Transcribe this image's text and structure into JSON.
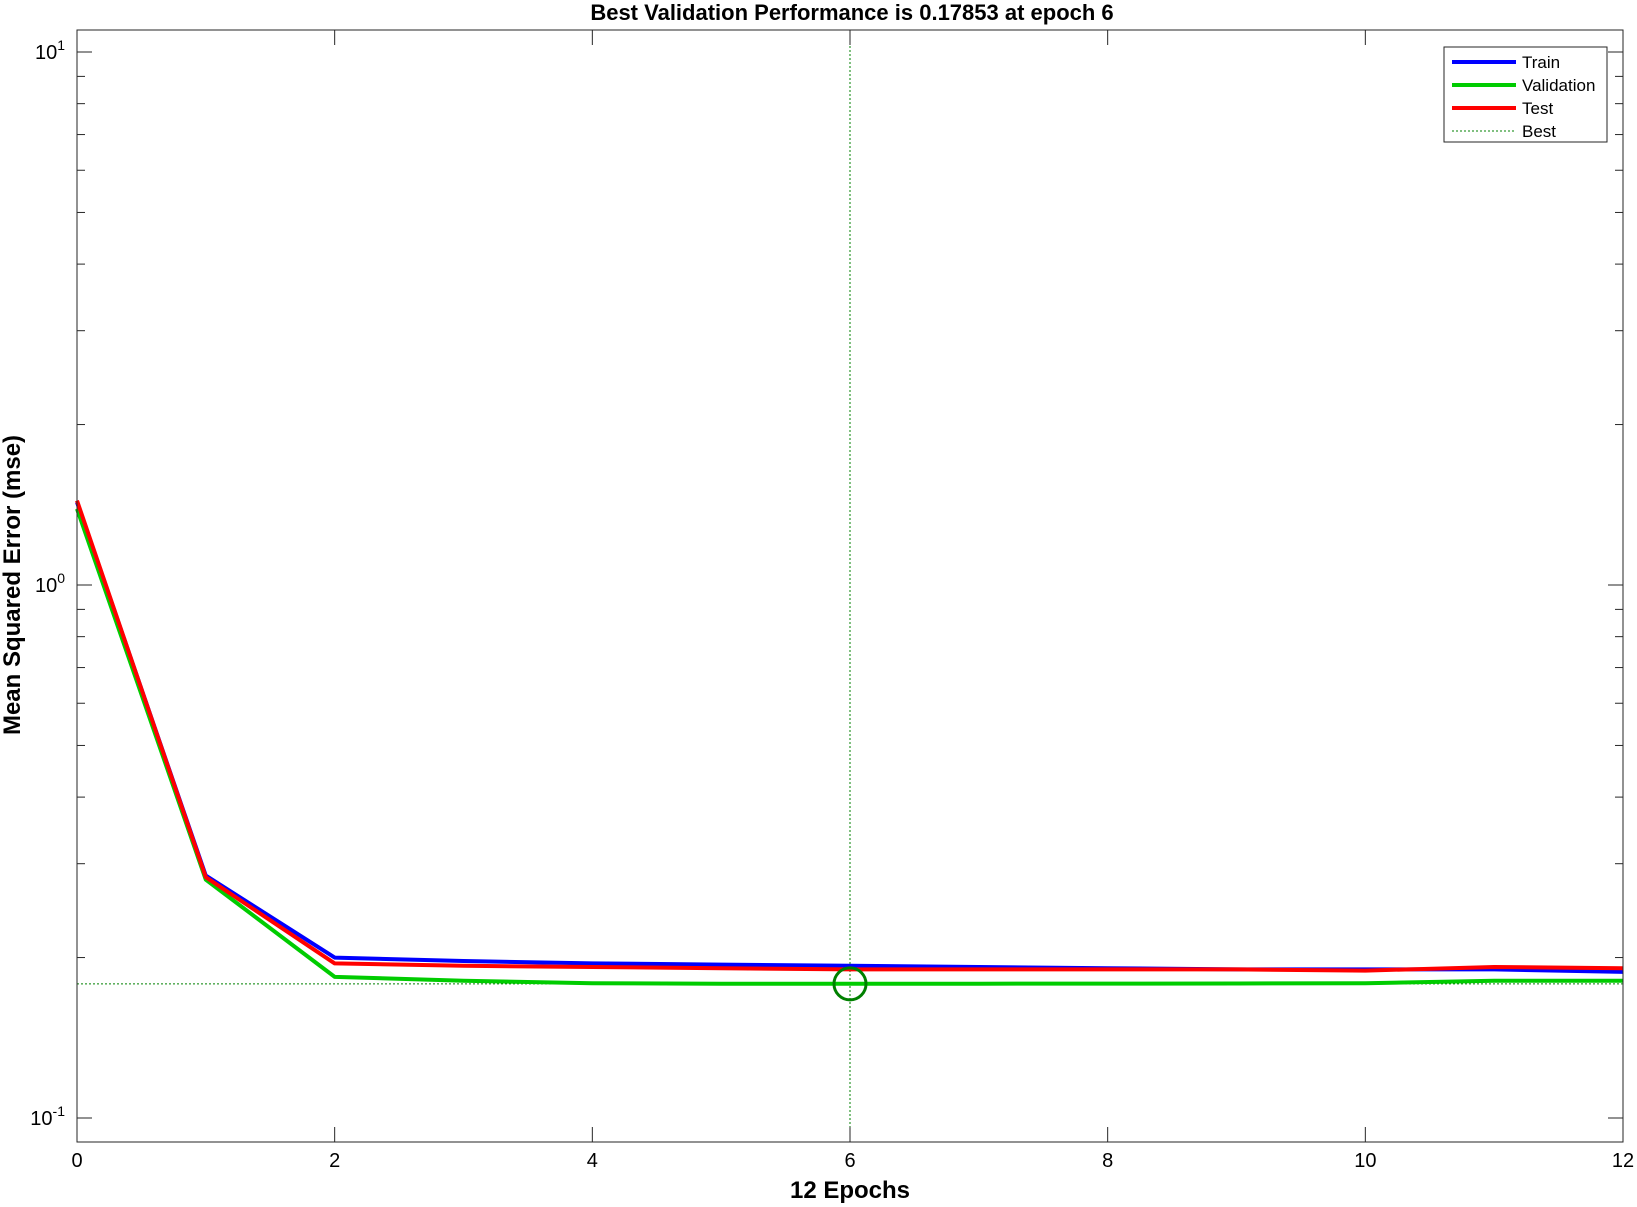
{
  "chart_data": {
    "type": "line",
    "title": "Best Validation Performance is 0.17853 at epoch 6",
    "xlabel": "12 Epochs",
    "ylabel": "Mean Squared Error  (mse)",
    "xlim": [
      0,
      12
    ],
    "ylim": [
      0.1,
      10
    ],
    "yscale": "log",
    "x_ticks": [
      0,
      2,
      4,
      6,
      8,
      10,
      12
    ],
    "y_ticks": [
      {
        "value": 10,
        "base": "10",
        "exp": "1"
      },
      {
        "value": 1,
        "base": "10",
        "exp": "0"
      },
      {
        "value": 0.1,
        "base": "10",
        "exp": "-1"
      }
    ],
    "grid": false,
    "legend_position": "top-right",
    "x": [
      0,
      1,
      2,
      3,
      4,
      5,
      6,
      7,
      8,
      9,
      10,
      11,
      12
    ],
    "series": [
      {
        "name": "Train",
        "color": "#0000ff",
        "values": [
          1.43,
          0.285,
          0.2,
          0.197,
          0.195,
          0.194,
          0.193,
          0.192,
          0.191,
          0.19,
          0.19,
          0.19,
          0.188
        ]
      },
      {
        "name": "Validation",
        "color": "#00cc00",
        "values": [
          1.39,
          0.28,
          0.184,
          0.181,
          0.179,
          0.1786,
          0.17853,
          0.1786,
          0.1787,
          0.1788,
          0.179,
          0.181,
          0.181
        ]
      },
      {
        "name": "Test",
        "color": "#ff0000",
        "values": [
          1.44,
          0.283,
          0.195,
          0.193,
          0.192,
          0.191,
          0.19,
          0.19,
          0.19,
          0.19,
          0.189,
          0.192,
          0.191
        ]
      }
    ],
    "best": {
      "name": "Best",
      "epoch": 6,
      "value": 0.17853,
      "color": "#008000"
    }
  }
}
